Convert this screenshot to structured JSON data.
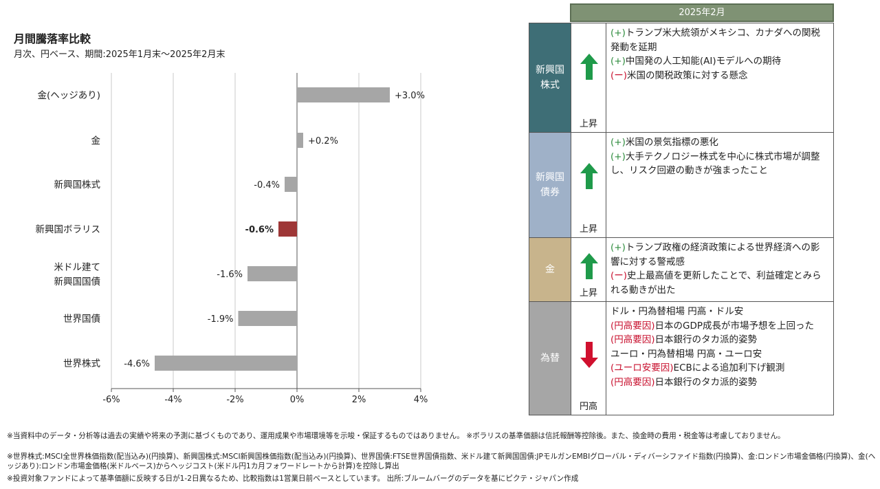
{
  "chart_data": {
    "type": "bar",
    "orientation": "horizontal",
    "title": "月間騰落率比較",
    "subtitle": "月次、円ベース、期間:2025年1月末〜2025年2月末",
    "categories": [
      {
        "lines": [
          "金(ヘッジあり)"
        ]
      },
      {
        "lines": [
          "金"
        ]
      },
      {
        "lines": [
          "新興国株式"
        ]
      },
      {
        "lines": [
          "新興国ボラリス"
        ]
      },
      {
        "lines": [
          "米ドル建て",
          "新興国国債"
        ]
      },
      {
        "lines": [
          "世界国債"
        ]
      },
      {
        "lines": [
          "世界株式"
        ]
      }
    ],
    "values": [
      3.0,
      0.2,
      -0.4,
      -0.6,
      -1.6,
      -1.9,
      -4.6
    ],
    "value_labels": [
      "+3.0%",
      "+0.2%",
      "-0.4%",
      "-0.6%",
      "-1.6%",
      "-1.9%",
      "-4.6%"
    ],
    "highlight_index": 3,
    "xlim": [
      -6,
      4
    ],
    "xticks": [
      -6,
      -4,
      -2,
      0,
      2,
      4
    ],
    "xtick_labels": [
      "-6%",
      "-4%",
      "-2%",
      "0%",
      "2%",
      "4%"
    ],
    "grid": true,
    "colors": {
      "bar": "#a6a6a6",
      "highlight": "#9e3737",
      "grid": "#c8c8c8",
      "axis": "#555555"
    }
  },
  "table": {
    "period": "2025年2月",
    "rows": [
      {
        "asset_lines": [
          "新興国",
          "株式"
        ],
        "color": "#3e6e76",
        "direction": "up",
        "direction_label": "上昇",
        "comments": [
          {
            "tag": "(+)",
            "tag_type": "pos",
            "text": "トランプ米大統領がメキシコ、カナダへの関税発動を延期"
          },
          {
            "tag": "(+)",
            "tag_type": "pos",
            "text": "中国発の人工知能(AI)モデルへの期待"
          },
          {
            "tag": "(ー)",
            "tag_type": "neg",
            "text": "米国の関税政策に対する懸念"
          }
        ]
      },
      {
        "asset_lines": [
          "新興国",
          "債券"
        ],
        "color": "#9fb1c8",
        "direction": "up",
        "direction_label": "上昇",
        "comments": [
          {
            "tag": "(+)",
            "tag_type": "pos",
            "text": "米国の景気指標の悪化"
          },
          {
            "tag": "(+)",
            "tag_type": "pos",
            "text": "大手テクノロジー株式を中心に株式市場が調整し、リスク回避の動きが強まったこと"
          }
        ]
      },
      {
        "asset_lines": [
          "金"
        ],
        "color": "#c8b48c",
        "direction": "up",
        "direction_label": "上昇",
        "comments": [
          {
            "tag": "(+)",
            "tag_type": "pos",
            "text": "トランプ政権の経済政策による世界経済への影響に対する警戒感"
          },
          {
            "tag": "(ー)",
            "tag_type": "neg",
            "text": "史上最高値を更新したことで、利益確定とみられる動きが出た"
          }
        ]
      },
      {
        "asset_lines": [
          "為替"
        ],
        "color": "#a6a6a6",
        "direction": "down",
        "direction_label": "円高",
        "comments": [
          {
            "tag": "",
            "tag_type": "plain",
            "text": "ドル・円為替相場 円高・ドル安"
          },
          {
            "tag": "(円高要因)",
            "tag_type": "neg",
            "text": "日本のGDP成長が市場予想を上回った"
          },
          {
            "tag": "(円高要因)",
            "tag_type": "neg",
            "text": "日本銀行のタカ派的姿勢"
          },
          {
            "tag": "",
            "tag_type": "plain",
            "text": "ユーロ・円為替相場 円高・ユーロ安"
          },
          {
            "tag": "(ユーロ安要因)",
            "tag_type": "neg",
            "text": "ECBによる追加利下げ観測"
          },
          {
            "tag": "(円高要因)",
            "tag_type": "neg",
            "text": "日本銀行のタカ派的姿勢"
          }
        ]
      }
    ]
  },
  "colors": {
    "up_arrow": "#1f9a4a",
    "down_arrow": "#d0102e",
    "header": "#7f9274"
  },
  "notes": [
    "※当資料中のデータ・分析等は過去の実績や将来の予測に基づくものであり、運用成果や市場環境等を示唆・保証するものではありません。 ※ボラリスの基準価額は信託報酬等控除後。また、換金時の費用・税金等は考慮しておりません。",
    "※世界株式:MSCI全世界株価指数(配当込み)(円換算)、新興国株式:MSCI新興国株価指数(配当込み)(円換算)、世界国債:FTSE世界国債指数、米ドル建て新興国国債:JPモルガンEMBIグローバル・ディバーシファイド指数(円換算)、金:ロンドン市場金価格(円換算)、金(ヘッジあり):ロンドン市場金価格(米ドルベース)からヘッジコスト(米ドル円1カ月フォワードレートから計算)を控除し算出",
    "※投資対象ファンドによって基準価額に反映する日が1-2日異なるため、比較指数は1営業日前ベースとしています。 出所:ブルームバーグのデータを基にピクテ・ジャパン作成"
  ]
}
